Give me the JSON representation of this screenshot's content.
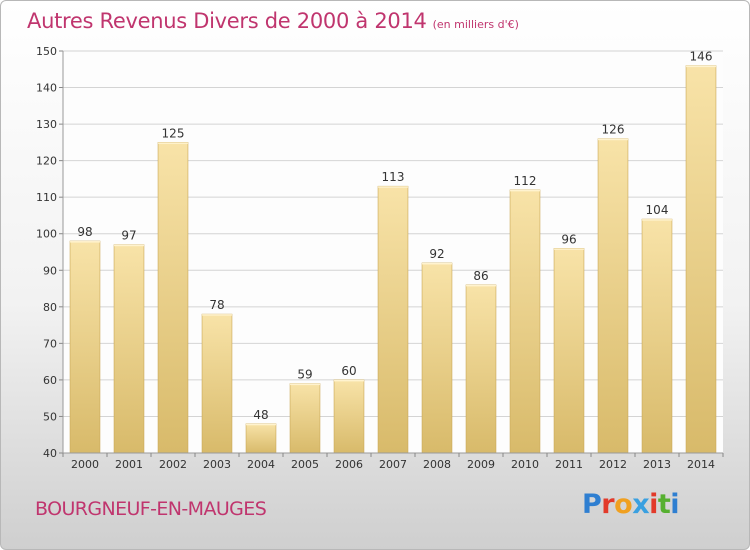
{
  "header": {
    "title": "Autres Revenus Divers de 2000 à 2014",
    "subtitle": "(en milliers d'€)"
  },
  "footer": {
    "town": "BOURGNEUF-EN-MAUGES",
    "brand_letters": [
      "P",
      "r",
      "o",
      "x",
      "i",
      "t",
      "i"
    ],
    "brand_colors": [
      "#2f7fd1",
      "#e23a2a",
      "#f0a020",
      "#3aa0e0",
      "#e23a2a",
      "#56b030",
      "#2f7fd1"
    ]
  },
  "colors": {
    "title": "#c0356e",
    "bar_light": "#f8e3a8",
    "bar_dark": "#d8ba6a",
    "bar_border": "#c9a855",
    "grid": "#d4d4d4"
  },
  "chart_data": {
    "type": "bar",
    "title": "Autres Revenus Divers de 2000 à 2014",
    "subtitle": "(en milliers d'€)",
    "categories": [
      "2000",
      "2001",
      "2002",
      "2003",
      "2004",
      "2005",
      "2006",
      "2007",
      "2008",
      "2009",
      "2010",
      "2011",
      "2012",
      "2013",
      "2014"
    ],
    "values": [
      98,
      97,
      125,
      78,
      48,
      59,
      60,
      113,
      92,
      86,
      112,
      96,
      126,
      104,
      146
    ],
    "ylim": [
      40,
      150
    ],
    "yticks": [
      40,
      50,
      60,
      70,
      80,
      90,
      100,
      110,
      120,
      130,
      140,
      150
    ],
    "grid": true,
    "xlabel": "",
    "ylabel": ""
  }
}
